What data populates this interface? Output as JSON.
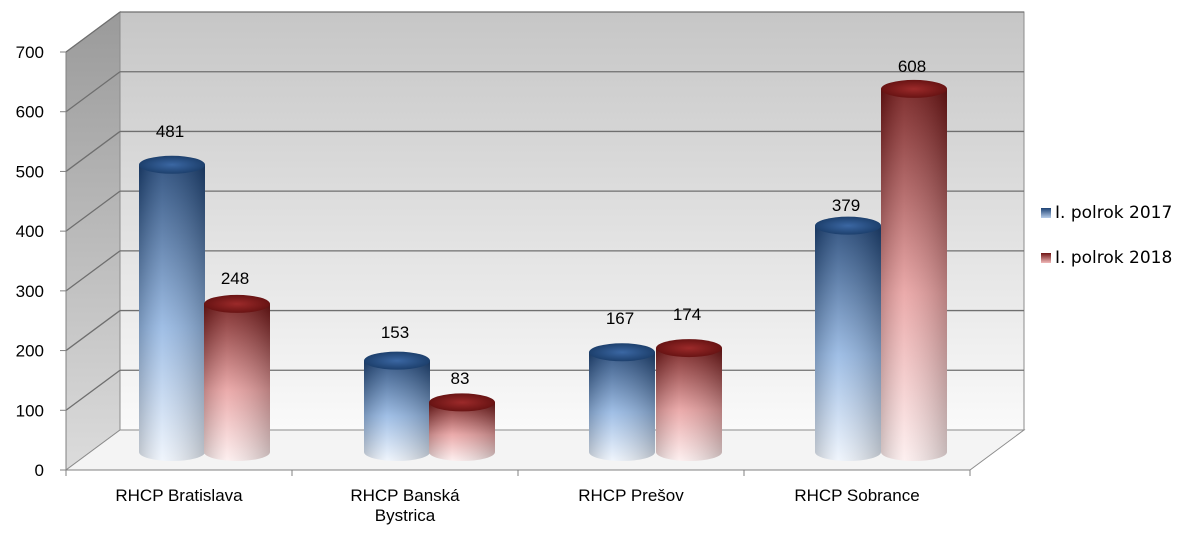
{
  "chart_data": {
    "type": "bar",
    "title": "",
    "categories": [
      "RHCP Bratislava",
      "RHCP Banská Bystrica",
      "RHCP Prešov",
      "RHCP Sobrance"
    ],
    "category_lines": [
      [
        "RHCP Bratislava"
      ],
      [
        "RHCP Banská",
        "Bystrica"
      ],
      [
        "RHCP Prešov"
      ],
      [
        "RHCP Sobrance"
      ]
    ],
    "series": [
      {
        "name": "I. polrok 2017",
        "values": [
          481,
          153,
          167,
          379
        ],
        "color": "#1f4e8c"
      },
      {
        "name": "I. polrok 2018",
        "values": [
          248,
          83,
          174,
          608
        ],
        "color": "#8b1a1a"
      }
    ],
    "ylim": [
      0,
      700
    ],
    "yticks": [
      0,
      100,
      200,
      300,
      400,
      500,
      600,
      700
    ],
    "xlabel": "",
    "ylabel": "",
    "grid": true,
    "legend_position": "right",
    "style": "3d-cylinder"
  }
}
